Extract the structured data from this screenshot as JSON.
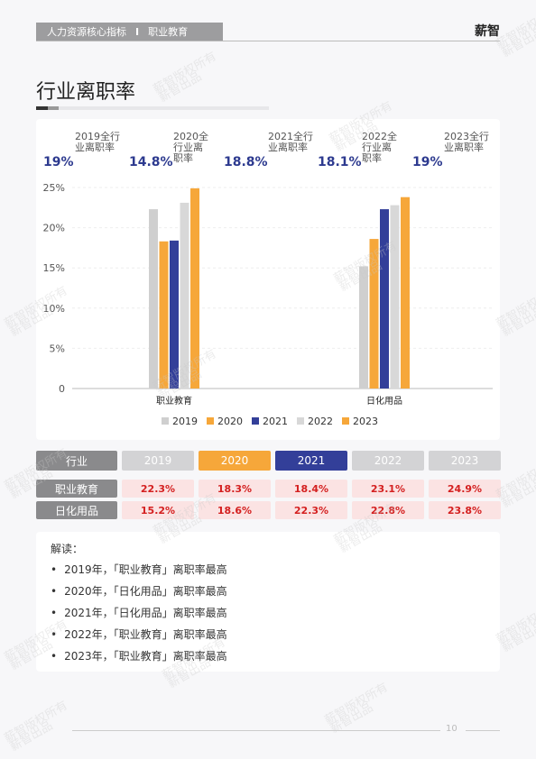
{
  "header": {
    "section": "人力资源核心指标",
    "separator": "I",
    "category": "职业教育",
    "brand": "薪智"
  },
  "page_title": "行业离职率",
  "kpis": [
    {
      "label": "2019全行业离职率",
      "value": "19%"
    },
    {
      "label": "2020全行业离职率",
      "value": "14.8%"
    },
    {
      "label": "2021全行业离职率",
      "value": "18.8%"
    },
    {
      "label": "2022全行业离职率",
      "value": "18.1%"
    },
    {
      "label": "2023全行业离职率",
      "value": "19%"
    }
  ],
  "chart_data": {
    "type": "bar",
    "categories": [
      "职业教育",
      "日化用品"
    ],
    "series": [
      {
        "name": "2019",
        "values": [
          22.3,
          15.2
        ],
        "color": "#cfcfcf"
      },
      {
        "name": "2020",
        "values": [
          18.3,
          18.6
        ],
        "color": "#f6a73a"
      },
      {
        "name": "2021",
        "values": [
          18.4,
          22.3
        ],
        "color": "#333f99"
      },
      {
        "name": "2022",
        "values": [
          23.1,
          22.8
        ],
        "color": "#d8d8d8"
      },
      {
        "name": "2023",
        "values": [
          24.9,
          23.8
        ],
        "color": "#f6a73a"
      }
    ],
    "yticks": [
      "0",
      "5%",
      "10%",
      "15%",
      "20%",
      "25%"
    ],
    "ylim": [
      0,
      25
    ],
    "grid": true,
    "legend": "bottom"
  },
  "table": {
    "header_label": "行业",
    "years": [
      "2019",
      "2020",
      "2021",
      "2022",
      "2023"
    ],
    "header_colors": [
      "#d3d3d5",
      "#f6a73a",
      "#333f99",
      "#d3d3d5",
      "#d3d3d5"
    ],
    "rows": [
      {
        "label": "职业教育",
        "cells": [
          "22.3%",
          "18.3%",
          "18.4%",
          "23.1%",
          "24.9%"
        ]
      },
      {
        "label": "日化用品",
        "cells": [
          "15.2%",
          "18.6%",
          "22.3%",
          "22.8%",
          "23.8%"
        ]
      }
    ]
  },
  "notes": {
    "heading": "解读：",
    "items": [
      "2019年，「职业教育」离职率最高",
      "2020年，「日化用品」离职率最高",
      "2021年，「日化用品」离职率最高",
      "2022年，「职业教育」离职率最高",
      "2023年，「职业教育」离职率最高"
    ]
  },
  "page_number": "10",
  "watermark": [
    "薪智版权所有",
    "薪智出品"
  ]
}
